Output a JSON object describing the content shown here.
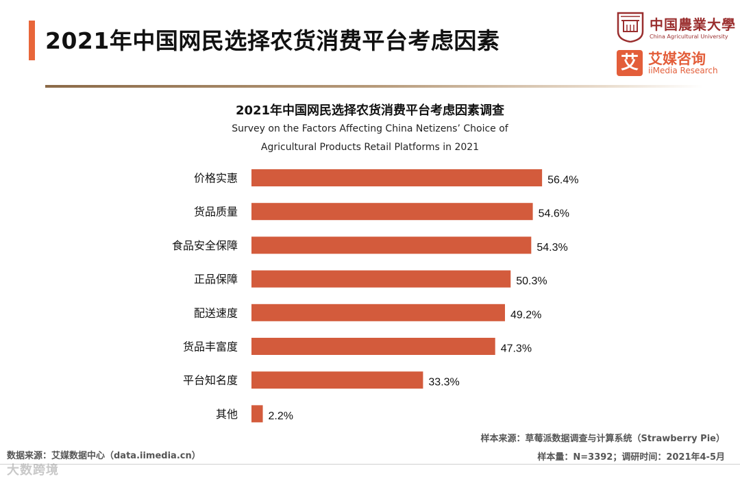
{
  "header": {
    "title": "2021年中国网民选择农货消费平台考虑因素",
    "accent_color": "#e8663a"
  },
  "logos": {
    "university_name": "中国農業大學",
    "university_en": "China Agricultural University",
    "iimedia_glyph": "艾",
    "iimedia_cn": "艾媒咨询",
    "iimedia_en": "iiMedia Research"
  },
  "chart_data": {
    "type": "bar",
    "orientation": "horizontal",
    "title": "2021年中国网民选择农货消费平台考虑因素调查",
    "subtitle_line1": "Survey on the Factors Affecting China Netizens’ Choice of",
    "subtitle_line2": "Agricultural Products Retail Platforms in 2021",
    "categories": [
      "价格实惠",
      "货品质量",
      "食品安全保障",
      "正品保障",
      "配送速度",
      "货品丰富度",
      "平台知名度",
      "其他"
    ],
    "values": [
      56.4,
      54.6,
      54.3,
      50.3,
      49.2,
      47.3,
      33.3,
      2.2
    ],
    "value_labels": [
      "56.4%",
      "54.6%",
      "54.3%",
      "50.3%",
      "49.2%",
      "47.3%",
      "33.3%",
      "2.2%"
    ],
    "unit": "%",
    "bar_color": "#d35b3c",
    "xlim": [
      0,
      60
    ],
    "grid": false,
    "xlabel": "",
    "ylabel": ""
  },
  "footer": {
    "source_left": "数据来源：艾媒数据中心（data.iimedia.cn）",
    "sample_source": "样本来源：草莓派数据调查与计算系统（Strawberry Pie）",
    "sample_info": "样本量：N=3392；调研时间：2021年4-5月",
    "watermark": "大数跨境"
  }
}
